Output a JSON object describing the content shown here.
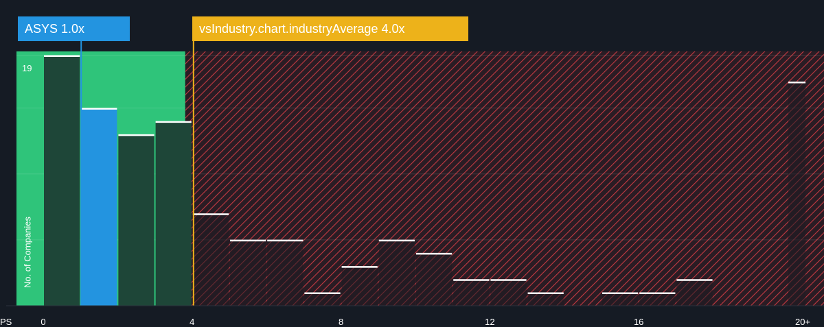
{
  "chart_data": {
    "type": "bar",
    "x_unit_label": "PS",
    "ylabel": "No. of Companies",
    "y_max_label": "19",
    "ylim": [
      0,
      19.3
    ],
    "xlim": [
      0,
      20.5
    ],
    "x_ticks": [
      {
        "value": 0,
        "label": "0"
      },
      {
        "value": 4,
        "label": "4"
      },
      {
        "value": 8,
        "label": "8"
      },
      {
        "value": 12,
        "label": "12"
      },
      {
        "value": 16,
        "label": "16"
      },
      {
        "value": 20,
        "label": "20+"
      }
    ],
    "bins": [
      {
        "start": 0,
        "end": 1,
        "count": 19
      },
      {
        "start": 1,
        "end": 2,
        "count": 15
      },
      {
        "start": 2,
        "end": 3,
        "count": 13
      },
      {
        "start": 3,
        "end": 4,
        "count": 14
      },
      {
        "start": 4,
        "end": 5,
        "count": 7
      },
      {
        "start": 5,
        "end": 6,
        "count": 5
      },
      {
        "start": 6,
        "end": 7,
        "count": 5
      },
      {
        "start": 7,
        "end": 8,
        "count": 1
      },
      {
        "start": 8,
        "end": 9,
        "count": 3
      },
      {
        "start": 9,
        "end": 10,
        "count": 5
      },
      {
        "start": 10,
        "end": 11,
        "count": 4
      },
      {
        "start": 11,
        "end": 12,
        "count": 2
      },
      {
        "start": 12,
        "end": 13,
        "count": 2
      },
      {
        "start": 13,
        "end": 14,
        "count": 1
      },
      {
        "start": 14,
        "end": 15,
        "count": 0
      },
      {
        "start": 15,
        "end": 16,
        "count": 1
      },
      {
        "start": 16,
        "end": 17,
        "count": 1
      },
      {
        "start": 17,
        "end": 18,
        "count": 2
      },
      {
        "start": 18,
        "end": 19,
        "count": 0
      },
      {
        "start": 19,
        "end": 20,
        "count": 0
      },
      {
        "start": 20,
        "end": 20.5,
        "count": 17
      }
    ],
    "company": {
      "label": "ASYS 1.0x",
      "value": 1.0,
      "highlight_bin": 1
    },
    "industry_average": {
      "label": "vsIndustry.chart.industryAverage 4.0x",
      "value": 4.0
    },
    "colors": {
      "background": "#151b24",
      "undervalued_zone": "#2fc47a",
      "overvalued_zone": "#e04a4a",
      "bar": "#1e4638",
      "bar_overvalued": "#1d1b22",
      "bar_highlight": "#2394e0",
      "bar_cap": "#ffffff",
      "industry_line": "#edb21a",
      "company_line": "#2394e0"
    },
    "grid": true
  }
}
